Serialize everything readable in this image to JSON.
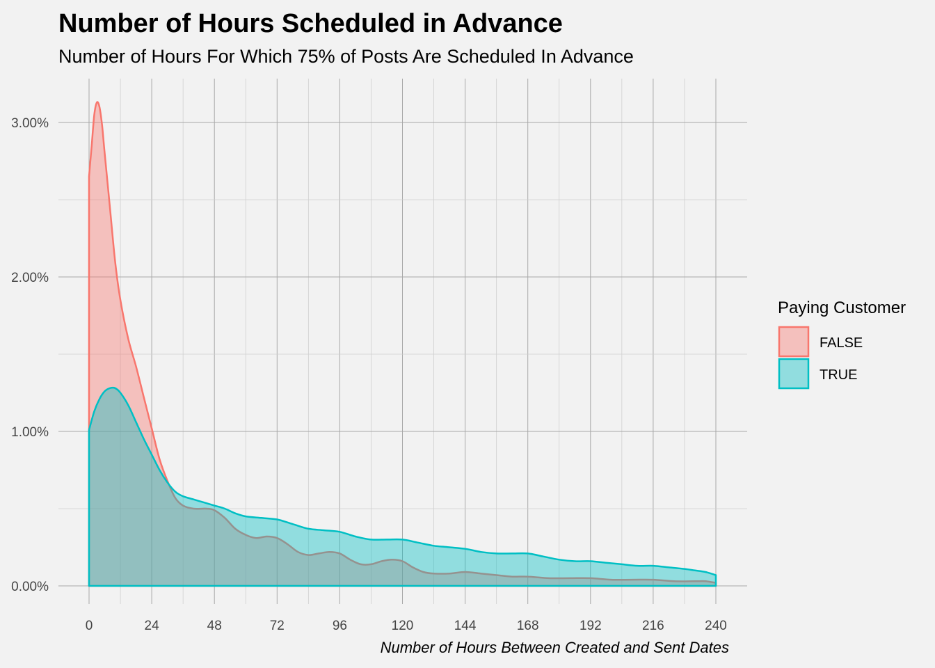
{
  "chart_data": {
    "type": "area",
    "title": "Number of Hours Scheduled in Advance",
    "subtitle": "Number of Hours For Which 75% of Posts Are Scheduled In Advance",
    "xlabel": "Number of Hours Between Created and Sent Dates",
    "ylabel": "",
    "xlim": [
      0,
      240
    ],
    "ylim": [
      0,
      0.032
    ],
    "x_ticks": [
      0,
      24,
      48,
      72,
      96,
      120,
      144,
      168,
      192,
      216,
      240
    ],
    "x_tick_labels": [
      "0",
      "24",
      "48",
      "72",
      "96",
      "120",
      "144",
      "168",
      "192",
      "216",
      "240"
    ],
    "y_ticks": [
      0,
      0.01,
      0.02,
      0.03
    ],
    "y_tick_labels": [
      "0.00%",
      "1.00%",
      "2.00%",
      "3.00%"
    ],
    "grid": true,
    "legend": {
      "title": "Paying Customer",
      "position": "right"
    },
    "series": [
      {
        "name": "FALSE",
        "color": "#f8766d",
        "points": [
          [
            0,
            0.0265
          ],
          [
            1,
            0.0285
          ],
          [
            2,
            0.0305
          ],
          [
            3,
            0.0313
          ],
          [
            4,
            0.031
          ],
          [
            5,
            0.0298
          ],
          [
            6,
            0.028
          ],
          [
            8,
            0.0245
          ],
          [
            10,
            0.021
          ],
          [
            12,
            0.0185
          ],
          [
            15,
            0.016
          ],
          [
            18,
            0.0142
          ],
          [
            21,
            0.0122
          ],
          [
            24,
            0.0102
          ],
          [
            27,
            0.0082
          ],
          [
            30,
            0.0068
          ],
          [
            33,
            0.0057
          ],
          [
            36,
            0.0052
          ],
          [
            40,
            0.005
          ],
          [
            45,
            0.005
          ],
          [
            48,
            0.0049
          ],
          [
            52,
            0.0044
          ],
          [
            56,
            0.0037
          ],
          [
            60,
            0.0033
          ],
          [
            64,
            0.0031
          ],
          [
            68,
            0.0032
          ],
          [
            72,
            0.0031
          ],
          [
            76,
            0.0027
          ],
          [
            80,
            0.0022
          ],
          [
            84,
            0.002
          ],
          [
            88,
            0.0021
          ],
          [
            92,
            0.0022
          ],
          [
            96,
            0.0021
          ],
          [
            100,
            0.0017
          ],
          [
            104,
            0.0014
          ],
          [
            108,
            0.0014
          ],
          [
            112,
            0.0016
          ],
          [
            116,
            0.0017
          ],
          [
            120,
            0.0016
          ],
          [
            124,
            0.0012
          ],
          [
            128,
            0.0009
          ],
          [
            132,
            0.0008
          ],
          [
            138,
            0.0008
          ],
          [
            144,
            0.0009
          ],
          [
            150,
            0.0008
          ],
          [
            156,
            0.0007
          ],
          [
            162,
            0.0006
          ],
          [
            168,
            0.0006
          ],
          [
            176,
            0.0005
          ],
          [
            184,
            0.0005
          ],
          [
            192,
            0.0005
          ],
          [
            200,
            0.0004
          ],
          [
            208,
            0.0004
          ],
          [
            216,
            0.0004
          ],
          [
            224,
            0.0003
          ],
          [
            232,
            0.0003
          ],
          [
            236,
            0.0003
          ],
          [
            240,
            0.0002
          ]
        ]
      },
      {
        "name": "TRUE",
        "color": "#00bfc4",
        "points": [
          [
            0,
            0.0101
          ],
          [
            2,
            0.0113
          ],
          [
            4,
            0.0121
          ],
          [
            6,
            0.0126
          ],
          [
            8,
            0.0128
          ],
          [
            10,
            0.0128
          ],
          [
            12,
            0.0125
          ],
          [
            15,
            0.0117
          ],
          [
            18,
            0.0106
          ],
          [
            21,
            0.0095
          ],
          [
            24,
            0.0085
          ],
          [
            27,
            0.0075
          ],
          [
            30,
            0.0067
          ],
          [
            33,
            0.0061
          ],
          [
            36,
            0.0058
          ],
          [
            40,
            0.0056
          ],
          [
            44,
            0.0054
          ],
          [
            48,
            0.0052
          ],
          [
            52,
            0.005
          ],
          [
            56,
            0.0047
          ],
          [
            60,
            0.0045
          ],
          [
            66,
            0.0044
          ],
          [
            72,
            0.0043
          ],
          [
            78,
            0.004
          ],
          [
            84,
            0.0037
          ],
          [
            90,
            0.0036
          ],
          [
            96,
            0.0035
          ],
          [
            102,
            0.0032
          ],
          [
            108,
            0.003
          ],
          [
            114,
            0.003
          ],
          [
            120,
            0.003
          ],
          [
            126,
            0.0028
          ],
          [
            132,
            0.0026
          ],
          [
            138,
            0.0025
          ],
          [
            144,
            0.0024
          ],
          [
            150,
            0.0022
          ],
          [
            156,
            0.0021
          ],
          [
            162,
            0.0021
          ],
          [
            168,
            0.0021
          ],
          [
            174,
            0.0019
          ],
          [
            180,
            0.0017
          ],
          [
            186,
            0.0016
          ],
          [
            192,
            0.0016
          ],
          [
            198,
            0.0015
          ],
          [
            204,
            0.0014
          ],
          [
            210,
            0.0013
          ],
          [
            216,
            0.0013
          ],
          [
            222,
            0.0012
          ],
          [
            228,
            0.0011
          ],
          [
            232,
            0.001
          ],
          [
            236,
            0.0009
          ],
          [
            240,
            0.0007
          ]
        ]
      }
    ]
  }
}
